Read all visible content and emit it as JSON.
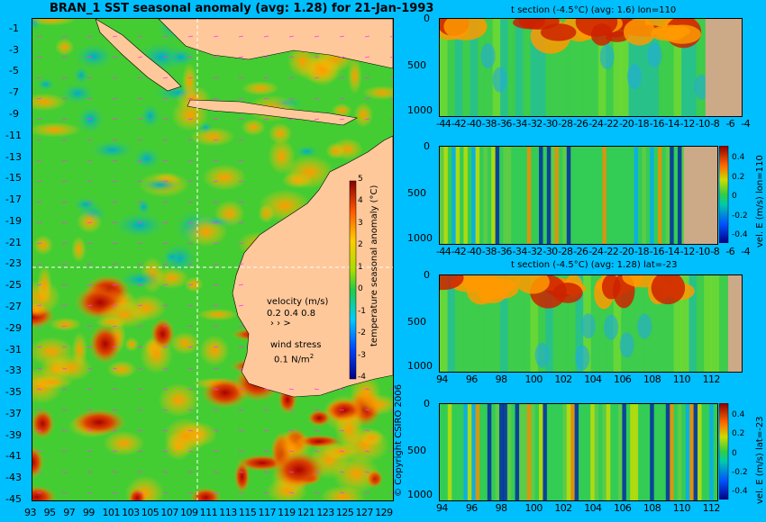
{
  "main_map": {
    "title": "BRAN_1 SST seasonal anomaly (avg: 1.28) for 21-Jan-1993",
    "lat_labels": [
      "-1",
      "-3",
      "-5",
      "-7",
      "-9",
      "-11",
      "-13",
      "-15",
      "-17",
      "-19",
      "-21",
      "-23",
      "-25",
      "-27",
      "-29",
      "-31",
      "-33",
      "-35",
      "-37",
      "-39",
      "-41",
      "-43",
      "-45"
    ],
    "lon_labels": [
      "93",
      "95",
      "97",
      "99",
      "101",
      "103",
      "105",
      "107",
      "109",
      "111",
      "113",
      "115",
      "117",
      "119",
      "121",
      "123",
      "125",
      "127",
      "129"
    ],
    "colorbar_label": "temperature seasonal anomaly (°C)",
    "colorbar_ticks": [
      "5",
      "4",
      "3",
      "2",
      "1",
      "0",
      "-1",
      "-2",
      "-3",
      "-4"
    ],
    "velocity_label": "velocity (m/s)",
    "velocity_scale": "0.2 0.4 0.8",
    "wind_label": "wind stress",
    "wind_scale": "0.1 N/m",
    "wind_scale_sup": "2",
    "copyright": "© Copyright CSIRO 2006",
    "colors": {
      "land": "#ffc89a",
      "ocean_mid": "#33cc33",
      "warm": "#ffaa00",
      "hot": "#cc1100",
      "cool": "#00cccc"
    }
  },
  "panels": [
    {
      "title": "t section (-4.5°C) (avg: 1.6) lon=110",
      "y_ticks": [
        "0",
        "500",
        "1000"
      ],
      "x_ticks": [
        "-44",
        "-42",
        "-40",
        "-38",
        "-36",
        "-34",
        "-32",
        "-30",
        "-28",
        "-26",
        "-24",
        "-22",
        "-20",
        "-18",
        "-16",
        "-14",
        "-12",
        "-10",
        "-8",
        "-6",
        "-4"
      ],
      "side_label": "",
      "cbar_ticks": []
    },
    {
      "title": "",
      "y_ticks": [
        "0",
        "500",
        "1000"
      ],
      "x_ticks": [
        "-44",
        "-42",
        "-40",
        "-38",
        "-36",
        "-34",
        "-32",
        "-30",
        "-28",
        "-26",
        "-24",
        "-22",
        "-20",
        "-18",
        "-16",
        "-14",
        "-12",
        "-10",
        "-8",
        "-6",
        "-4"
      ],
      "side_label": "vel. E (m/s) lon=110",
      "cbar_ticks": [
        "0.4",
        "0.2",
        "0",
        "-0.2",
        "-0.4"
      ]
    },
    {
      "title": "t section (-4.5°C) (avg: 1.28) lat=-23",
      "y_ticks": [
        "0",
        "500",
        "1000"
      ],
      "x_ticks": [
        "94",
        "96",
        "98",
        "100",
        "102",
        "104",
        "106",
        "108",
        "110",
        "112"
      ],
      "side_label": "",
      "cbar_ticks": []
    },
    {
      "title": "",
      "y_ticks": [
        "0",
        "500",
        "1000"
      ],
      "x_ticks": [
        "94",
        "96",
        "98",
        "100",
        "102",
        "104",
        "106",
        "108",
        "110",
        "112"
      ],
      "side_label": "vel. E (m/s) lat=-23",
      "cbar_ticks": [
        "0.4",
        "0.2",
        "0",
        "-0.2",
        "-0.4"
      ]
    }
  ],
  "chart_data": [
    {
      "type": "heatmap",
      "title": "BRAN_1 SST seasonal anomaly (avg: 1.28) for 21-Jan-1993",
      "xlabel": "",
      "ylabel": "",
      "xlim": [
        93,
        130
      ],
      "ylim": [
        -45,
        0
      ],
      "zlim": [
        -4,
        5
      ],
      "colorbar": "temperature seasonal anomaly (°C)"
    },
    {
      "type": "heatmap",
      "title": "t section (-4.5°C) (avg: 1.6) lon=110",
      "xlim": [
        -45,
        -3
      ],
      "ylim": [
        1050,
        0
      ]
    },
    {
      "type": "heatmap",
      "title": "",
      "xlim": [
        -45,
        -3
      ],
      "ylim": [
        1050,
        0
      ],
      "zlim": [
        -0.4,
        0.4
      ],
      "colorbar": "vel. E (m/s) lon=110"
    },
    {
      "type": "heatmap",
      "title": "t section (-4.5°C) (avg: 1.28) lat=-23",
      "xlim": [
        93,
        114
      ],
      "ylim": [
        1050,
        0
      ]
    },
    {
      "type": "heatmap",
      "title": "",
      "xlim": [
        93,
        114
      ],
      "ylim": [
        1050,
        0
      ],
      "zlim": [
        -0.4,
        0.4
      ],
      "colorbar": "vel. E (m/s) lat=-23"
    }
  ]
}
